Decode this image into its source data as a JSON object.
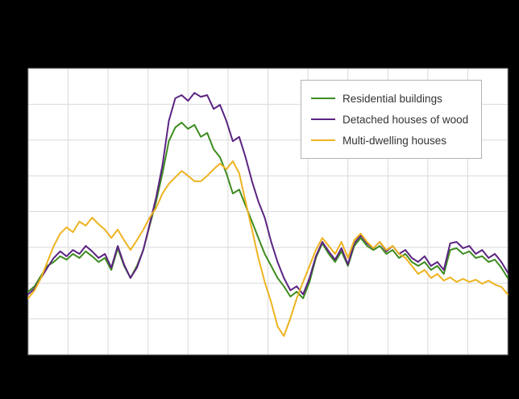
{
  "canvas": {
    "background": "#000000",
    "plot_background": "#ffffff",
    "grid_color": "#d9d9d9",
    "border_color": "#a0a0a0"
  },
  "chart_data": {
    "type": "line",
    "title": "",
    "xlabel": "",
    "ylabel": "",
    "grid": true,
    "legend_position": "upper-right-inside-plot",
    "note": "No chart title, axis labels or tick labels are visible in the screenshot (area outside the plot is solid black). Values below are estimated in normalized plot units where 0 = bottom of plot area and 100 = top.",
    "x_count": 76,
    "x_description": "76 evenly spaced points along an unlabeled time axis",
    "ylim": [
      0,
      100
    ],
    "v_grid_intervals": 12,
    "h_grid_intervals": 8,
    "series": [
      {
        "name": "Residential buildings",
        "color": "#3e8c20",
        "values": [
          22.0,
          23.9,
          27.6,
          31.0,
          32.4,
          34.4,
          33.2,
          35.2,
          33.8,
          36.1,
          34.4,
          32.4,
          33.8,
          29.6,
          37.2,
          31.0,
          26.8,
          31.0,
          36.6,
          45.1,
          53.5,
          63.4,
          74.6,
          79.4,
          81.1,
          78.9,
          80.3,
          76.1,
          77.5,
          71.8,
          69.0,
          63.4,
          56.3,
          57.7,
          52.1,
          46.5,
          40.8,
          35.2,
          31.0,
          26.8,
          23.9,
          20.3,
          22.0,
          19.7,
          25.4,
          33.8,
          38.9,
          35.2,
          32.4,
          36.1,
          31.0,
          38.0,
          40.8,
          38.0,
          36.6,
          38.0,
          35.2,
          36.6,
          33.8,
          35.2,
          32.4,
          31.0,
          32.4,
          29.6,
          31.0,
          28.2,
          36.6,
          37.2,
          35.2,
          36.1,
          33.8,
          34.4,
          32.4,
          33.2,
          30.4,
          26.8
        ]
      },
      {
        "name": "Detached houses of wood",
        "color": "#5b2482",
        "values": [
          21.1,
          23.1,
          26.8,
          30.4,
          33.8,
          36.1,
          34.4,
          36.6,
          35.2,
          38.0,
          36.1,
          33.8,
          35.2,
          30.4,
          38.0,
          31.5,
          26.8,
          30.4,
          36.6,
          45.6,
          54.9,
          66.2,
          81.7,
          89.6,
          90.7,
          88.7,
          91.5,
          90.1,
          90.7,
          85.9,
          87.3,
          81.7,
          74.6,
          76.1,
          69.0,
          60.6,
          53.5,
          47.9,
          39.4,
          32.4,
          26.8,
          22.5,
          23.9,
          21.1,
          26.8,
          34.4,
          39.4,
          36.1,
          33.2,
          37.2,
          31.5,
          38.9,
          41.7,
          38.9,
          37.2,
          39.4,
          36.1,
          38.0,
          35.2,
          36.6,
          33.8,
          32.4,
          34.4,
          31.0,
          32.4,
          29.6,
          38.9,
          39.4,
          37.2,
          38.0,
          35.2,
          36.6,
          33.8,
          35.2,
          32.4,
          28.7
        ]
      },
      {
        "name": "Multi-dwelling houses",
        "color": "#eeb320",
        "values": [
          19.7,
          22.5,
          26.8,
          32.4,
          38.0,
          42.3,
          44.5,
          42.8,
          46.5,
          45.1,
          47.9,
          45.6,
          43.7,
          40.8,
          43.7,
          40.0,
          36.6,
          40.0,
          43.7,
          47.9,
          51.3,
          56.3,
          59.7,
          62.0,
          64.2,
          62.5,
          60.6,
          60.6,
          62.5,
          64.8,
          66.8,
          64.8,
          67.6,
          63.4,
          53.5,
          43.7,
          33.8,
          25.4,
          18.3,
          9.9,
          6.5,
          12.7,
          19.7,
          25.4,
          31.0,
          36.6,
          40.8,
          38.0,
          35.2,
          39.4,
          33.8,
          40.0,
          42.3,
          39.4,
          37.2,
          39.4,
          36.6,
          38.0,
          35.2,
          33.8,
          31.0,
          28.2,
          29.6,
          26.8,
          28.2,
          25.9,
          27.0,
          25.4,
          26.5,
          25.4,
          26.2,
          24.8,
          25.9,
          24.5,
          23.7,
          21.1
        ]
      }
    ]
  }
}
